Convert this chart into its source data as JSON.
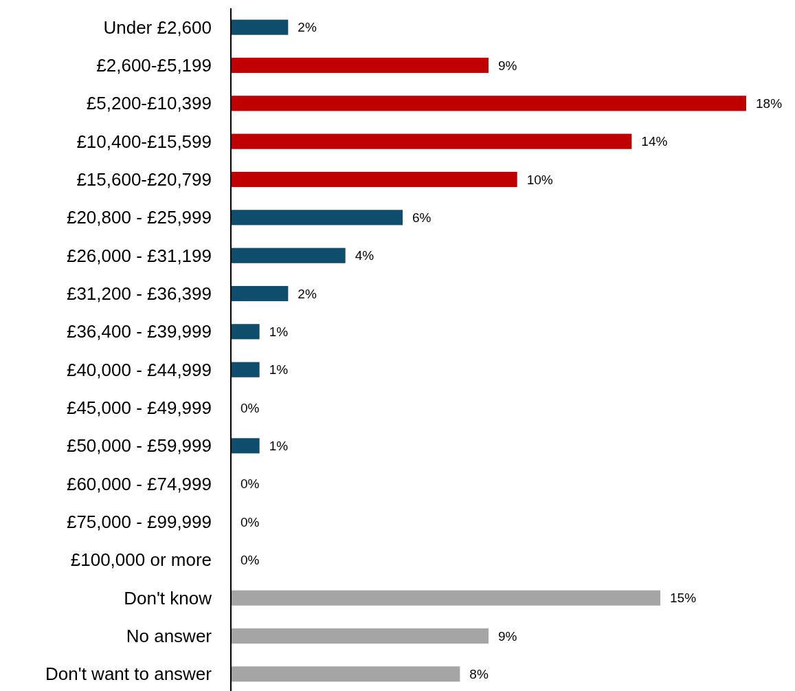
{
  "chart_data": {
    "type": "bar",
    "orientation": "horizontal",
    "categories": [
      "Under £2,600",
      "£2,600-£5,199",
      "£5,200-£10,399",
      "£10,400-£15,599",
      "£15,600-£20,799",
      "£20,800 - £25,999",
      "£26,000 - £31,199",
      "£31,200 - £36,399",
      "£36,400 - £39,999",
      "£40,000 - £44,999",
      "£45,000 - £49,999",
      "£50,000 - £59,999",
      "£60,000 - £74,999",
      "£75,000 - £99,999",
      "£100,000 or more",
      "Don't know",
      "No answer",
      "Don't want to answer"
    ],
    "values": [
      2,
      9,
      18,
      14,
      10,
      6,
      4,
      2,
      1,
      1,
      0,
      1,
      0,
      0,
      0,
      15,
      9,
      8
    ],
    "value_labels": [
      "2%",
      "9%",
      "18%",
      "14%",
      "10%",
      "6%",
      "4%",
      "2%",
      "1%",
      "1%",
      "0%",
      "1%",
      "0%",
      "0%",
      "0%",
      "15%",
      "9%",
      "8%"
    ],
    "colors": [
      "#0e4d6b",
      "#c00000",
      "#c00000",
      "#c00000",
      "#c00000",
      "#0e4d6b",
      "#0e4d6b",
      "#0e4d6b",
      "#0e4d6b",
      "#0e4d6b",
      "#0e4d6b",
      "#0e4d6b",
      "#0e4d6b",
      "#0e4d6b",
      "#0e4d6b",
      "#a5a5a5",
      "#a5a5a5",
      "#a5a5a5"
    ]
  }
}
